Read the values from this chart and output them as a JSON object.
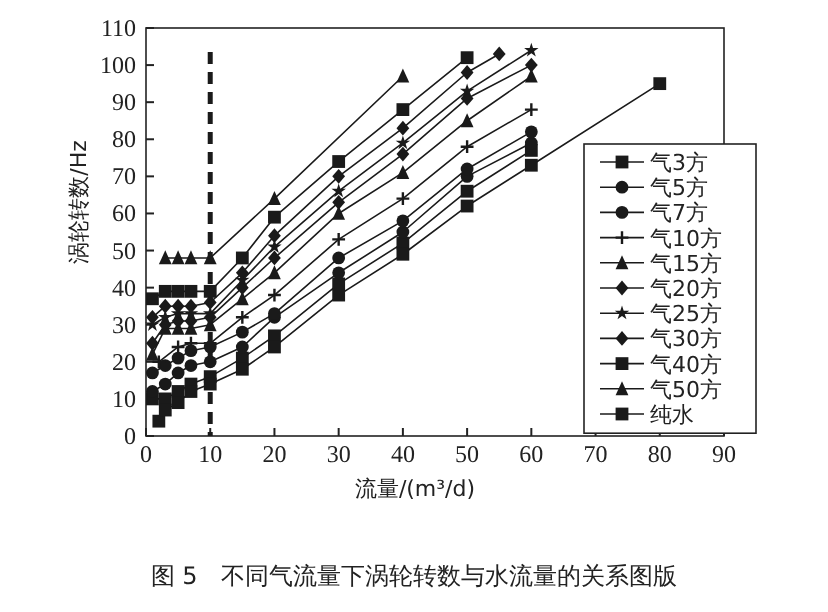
{
  "chart_data": {
    "type": "line",
    "xlabel": "流量/(m³/d)",
    "ylabel": "涡轮转数/Hz",
    "annotations": [
      "图 5　不同气流量下涡轮转数与水流量的关系图版"
    ],
    "xlim": [
      0,
      90
    ],
    "ylim": [
      0,
      110
    ],
    "xticks": [
      0,
      10,
      20,
      30,
      40,
      50,
      60,
      70,
      80,
      90
    ],
    "yticks": [
      0,
      10,
      20,
      30,
      40,
      50,
      60,
      70,
      80,
      90,
      100,
      110
    ],
    "grid": false,
    "legend": "right",
    "line_style": "solid",
    "ref_lines": [
      {
        "axis": "x",
        "value": 10,
        "color": "#1a1a1a",
        "line_style": "dashed"
      }
    ],
    "series": [
      {
        "name": "气3方",
        "color": "#1a1a1a",
        "marker": "square",
        "x": [
          1,
          3,
          5,
          7,
          10,
          15,
          20,
          30,
          40,
          50,
          60
        ],
        "values": [
          10,
          10,
          12,
          14,
          16,
          21,
          27,
          41,
          52,
          66,
          77
        ]
      },
      {
        "name": "气5方",
        "color": "#1a1a1a",
        "marker": "circle",
        "x": [
          1,
          3,
          5,
          7,
          10,
          15,
          20,
          30,
          40,
          50,
          60
        ],
        "values": [
          12,
          14,
          17,
          19,
          20,
          24,
          32,
          44,
          55,
          70,
          79
        ]
      },
      {
        "name": "气7方",
        "color": "#1a1a1a",
        "marker": "circle",
        "x": [
          1,
          3,
          5,
          7,
          10,
          15,
          20,
          30,
          40,
          50,
          60
        ],
        "values": [
          17,
          19,
          21,
          23,
          24,
          28,
          33,
          48,
          58,
          72,
          82
        ]
      },
      {
        "name": "气10方",
        "color": "#1a1a1a",
        "marker": "cross",
        "x": [
          2,
          5,
          7,
          10,
          15,
          20,
          30,
          40,
          50,
          60
        ],
        "values": [
          20,
          24,
          25,
          25,
          32,
          38,
          53,
          64,
          78,
          88
        ]
      },
      {
        "name": "气15方",
        "color": "#1a1a1a",
        "marker": "triangle",
        "x": [
          1,
          3,
          5,
          7,
          10,
          15,
          20,
          30,
          40,
          50,
          60
        ],
        "values": [
          22,
          29,
          29,
          29,
          30,
          37,
          44,
          60,
          71,
          85,
          97
        ]
      },
      {
        "name": "气20方",
        "color": "#1a1a1a",
        "marker": "diamond",
        "x": [
          1,
          3,
          5,
          7,
          10,
          15,
          20,
          30,
          40,
          50,
          60
        ],
        "values": [
          25,
          30,
          31,
          31,
          32,
          40,
          48,
          63,
          76,
          91,
          100
        ]
      },
      {
        "name": "气25方",
        "color": "#1a1a1a",
        "marker": "star",
        "x": [
          1,
          3,
          5,
          7,
          10,
          15,
          20,
          30,
          40,
          50,
          60
        ],
        "values": [
          30,
          32,
          33,
          33,
          33,
          42,
          51,
          66,
          79,
          93,
          104
        ]
      },
      {
        "name": "气30方",
        "color": "#1a1a1a",
        "marker": "diamond",
        "x": [
          1,
          3,
          5,
          7,
          10,
          15,
          20,
          30,
          40,
          50,
          55
        ],
        "values": [
          32,
          35,
          35,
          35,
          36,
          44,
          54,
          70,
          83,
          98,
          103
        ]
      },
      {
        "name": "气40方",
        "color": "#1a1a1a",
        "marker": "square",
        "x": [
          1,
          3,
          5,
          7,
          10,
          15,
          20,
          30,
          40,
          50
        ],
        "values": [
          37,
          39,
          39,
          39,
          39,
          48,
          59,
          74,
          88,
          102
        ]
      },
      {
        "name": "气50方",
        "color": "#1a1a1a",
        "marker": "triangle",
        "x": [
          3,
          5,
          7,
          10,
          20,
          40
        ],
        "values": [
          48,
          48,
          48,
          48,
          64,
          97
        ]
      },
      {
        "name": "纯水",
        "color": "#1a1a1a",
        "marker": "square",
        "x": [
          2,
          3,
          5,
          7,
          10,
          15,
          20,
          30,
          40,
          50,
          60,
          80
        ],
        "values": [
          4,
          7,
          9,
          12,
          14,
          18,
          24,
          38,
          49,
          62,
          73,
          95
        ]
      }
    ]
  }
}
